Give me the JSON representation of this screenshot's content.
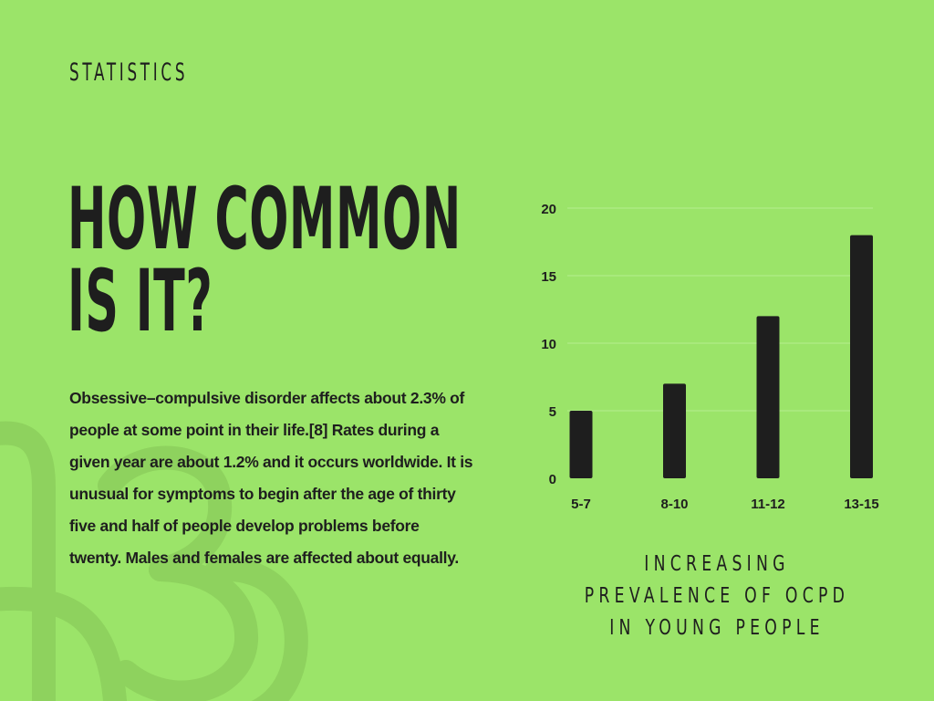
{
  "page": {
    "kicker": "STATISTICS",
    "heading_lines": [
      "HOW COMMON",
      "IS IT?"
    ],
    "body": "Obsessive–compulsive disorder affects about 2.3% of people at some point in their life.[8] Rates during a given year are about 1.2% and it occurs worldwide. It is unusual for symptoms to begin after the age of thirty five and half of people develop problems before twenty. Males and females are affected about equally.",
    "colors": {
      "background": "#9be469",
      "text": "#1e1e1e",
      "bar": "#1e1e1e",
      "gridline": "#b4ee8f",
      "watermark": "#8ed25e"
    }
  },
  "chart_data": {
    "type": "bar",
    "categories": [
      "5-7",
      "8-10",
      "11-12",
      "13-15"
    ],
    "values": [
      5,
      7,
      12,
      18
    ],
    "ylim": [
      0,
      20
    ],
    "yticks": [
      0,
      5,
      10,
      15,
      20
    ],
    "grid": true,
    "legend": "none",
    "title": "INCREASING PREVALENCE OF OCPD\nIN YOUNG PEOPLE",
    "title_lines": [
      "INCREASING PREVALENCE OF OCPD",
      "IN YOUNG PEOPLE"
    ],
    "xlabel": "",
    "ylabel": ""
  }
}
